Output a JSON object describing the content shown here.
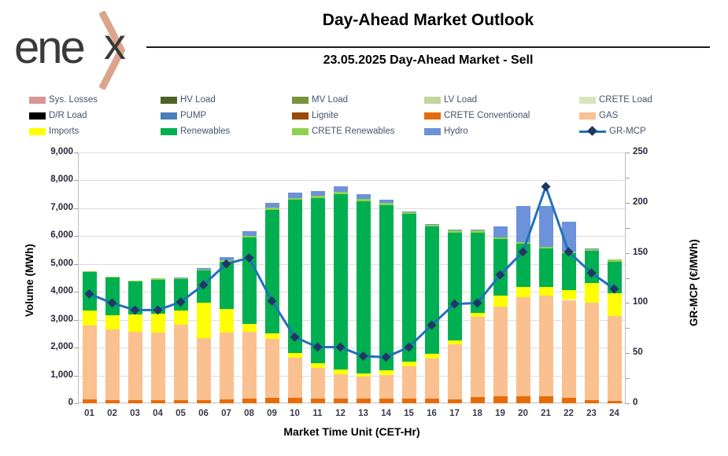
{
  "header": {
    "logo_text": "ene",
    "logo_x": "x",
    "title": "Day-Ahead Market Outlook",
    "subtitle": "23.05.2025  Day-Ahead Market - Sell"
  },
  "legend": [
    {
      "label": "Sys. Losses",
      "color": "#D99694",
      "type": "box"
    },
    {
      "label": "HV Load",
      "color": "#4F6228",
      "type": "box"
    },
    {
      "label": "MV Load",
      "color": "#77933C",
      "type": "box"
    },
    {
      "label": "LV Load",
      "color": "#C3D69B",
      "type": "box"
    },
    {
      "label": "CRETE Load",
      "color": "#D7E4BD",
      "type": "box"
    },
    {
      "label": "D/R Load",
      "color": "#000000",
      "type": "box"
    },
    {
      "label": "PUMP",
      "color": "#4A7EBB",
      "type": "box"
    },
    {
      "label": "Lignite",
      "color": "#9A4906",
      "type": "box"
    },
    {
      "label": "CRETE Conventional",
      "color": "#E46C0A",
      "type": "box"
    },
    {
      "label": "GAS",
      "color": "#FAC090",
      "type": "box"
    },
    {
      "label": "Imports",
      "color": "#FFFF00",
      "type": "box"
    },
    {
      "label": "Renewables",
      "color": "#00B050",
      "type": "box"
    },
    {
      "label": "CRETE Renewables",
      "color": "#92D050",
      "type": "box"
    },
    {
      "label": "Hydro",
      "color": "#6C92D9",
      "type": "box"
    },
    {
      "label": "GR-MCP",
      "color": "#2271B8",
      "marker_color": "#1F3864",
      "type": "line"
    }
  ],
  "chart_data": {
    "type": "combo-stacked-bar-line",
    "categories": [
      "01",
      "02",
      "03",
      "04",
      "05",
      "06",
      "07",
      "08",
      "09",
      "10",
      "11",
      "12",
      "13",
      "14",
      "15",
      "16",
      "17",
      "18",
      "19",
      "20",
      "21",
      "22",
      "23",
      "24"
    ],
    "series": [
      {
        "name": "CRETE Conventional",
        "color": "#E46C0A",
        "values": [
          140,
          110,
          110,
          110,
          110,
          120,
          150,
          160,
          200,
          205,
          170,
          170,
          170,
          180,
          175,
          170,
          150,
          230,
          250,
          250,
          240,
          200,
          120,
          80
        ]
      },
      {
        "name": "GAS",
        "color": "#FAC090",
        "values": [
          2650,
          2545,
          2455,
          2430,
          2705,
          2210,
          2400,
          2420,
          2100,
          1440,
          1100,
          860,
          790,
          835,
          1160,
          1450,
          1965,
          2870,
          3230,
          3560,
          3615,
          3510,
          3500,
          3065
        ]
      },
      {
        "name": "Imports",
        "color": "#FFFF00",
        "values": [
          545,
          505,
          625,
          685,
          515,
          1290,
          845,
          280,
          210,
          160,
          160,
          195,
          125,
          165,
          150,
          170,
          140,
          140,
          380,
          375,
          330,
          350,
          700,
          800
        ]
      },
      {
        "name": "Renewables",
        "color": "#00B050",
        "values": [
          1365,
          1350,
          1180,
          1215,
          1120,
          1150,
          1690,
          3080,
          4435,
          5495,
          5940,
          6290,
          6175,
          5935,
          5305,
          4555,
          3880,
          2895,
          2045,
          1540,
          1370,
          1330,
          1160,
          1135
        ]
      },
      {
        "name": "CRETE Renewables",
        "color": "#92D050",
        "values": [
          40,
          40,
          40,
          40,
          40,
          40,
          50,
          60,
          70,
          70,
          70,
          75,
          70,
          75,
          70,
          60,
          65,
          60,
          60,
          60,
          60,
          60,
          55,
          70
        ]
      },
      {
        "name": "Hydro",
        "color": "#6C92D9",
        "values": [
          0,
          0,
          0,
          0,
          30,
          50,
          100,
          170,
          185,
          190,
          170,
          190,
          185,
          110,
          20,
          30,
          30,
          35,
          395,
          1295,
          1465,
          1080,
          30,
          0
        ]
      }
    ],
    "line_series": {
      "name": "GR-MCP",
      "axis": "right",
      "color": "#2271B8",
      "marker_color": "#1F3864",
      "values": [
        109,
        100,
        93,
        93,
        101,
        118,
        139,
        145,
        102,
        66,
        56,
        56,
        47,
        46,
        56,
        78,
        99,
        100,
        128,
        151,
        216,
        151,
        130,
        114
      ]
    },
    "y_left": {
      "label": "Volume (MWh)",
      "min": 0,
      "max": 9000,
      "step": 1000
    },
    "y_right": {
      "label": "GR-MCP (€/MWh)",
      "min": 0,
      "max": 250,
      "step": 50,
      "minor_step": 25
    },
    "xlabel": "Market Time Unit (CET-Hr)",
    "grid": true
  }
}
